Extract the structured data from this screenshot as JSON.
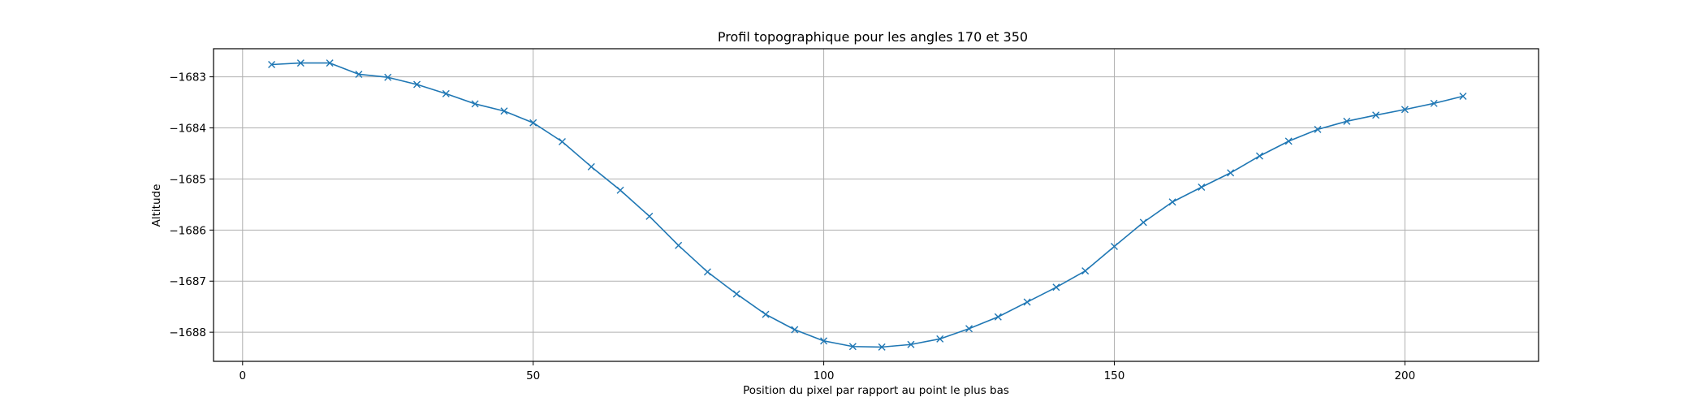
{
  "chart_data": {
    "type": "line",
    "title": "Profil topographique pour les angles 170 et 350",
    "xlabel": "Position du pixel par rapport au point le plus bas",
    "ylabel": "Altitude",
    "xlim": [
      -5,
      223
    ],
    "ylim": [
      -1688.57,
      -1682.45
    ],
    "x_ticks": [
      0,
      50,
      100,
      150,
      200
    ],
    "y_ticks": [
      -1688,
      -1687,
      -1686,
      -1685,
      -1684,
      -1683
    ],
    "x_tick_labels": [
      "0",
      "50",
      "100",
      "150",
      "200"
    ],
    "y_tick_labels": [
      "−1688",
      "−1687",
      "−1686",
      "−1685",
      "−1684",
      "−1683"
    ],
    "grid": true,
    "marker": "x",
    "colors": {
      "line": "#1f77b4",
      "grid": "#b0b0b0",
      "axes": "#000000"
    },
    "series": [
      {
        "x": [
          5,
          10,
          15,
          20,
          25,
          30,
          35,
          40,
          45,
          50,
          55,
          60,
          65,
          70,
          75,
          80,
          85,
          90,
          95,
          100,
          105,
          110,
          115,
          120,
          125,
          130,
          135,
          140,
          145,
          150,
          155,
          160,
          165,
          170,
          175,
          180,
          185,
          190,
          195,
          200,
          205,
          210
        ],
        "values": [
          -1682.76,
          -1682.73,
          -1682.73,
          -1682.95,
          -1683.01,
          -1683.15,
          -1683.33,
          -1683.53,
          -1683.67,
          -1683.9,
          -1684.27,
          -1684.76,
          -1685.22,
          -1685.73,
          -1686.3,
          -1686.82,
          -1687.25,
          -1687.65,
          -1687.95,
          -1688.17,
          -1688.28,
          -1688.29,
          -1688.24,
          -1688.13,
          -1687.93,
          -1687.7,
          -1687.41,
          -1687.12,
          -1686.8,
          -1686.32,
          -1685.85,
          -1685.45,
          -1685.16,
          -1684.88,
          -1684.55,
          -1684.26,
          -1684.03,
          -1683.87,
          -1683.75,
          -1683.64,
          -1683.52,
          -1683.38
        ]
      }
    ]
  }
}
